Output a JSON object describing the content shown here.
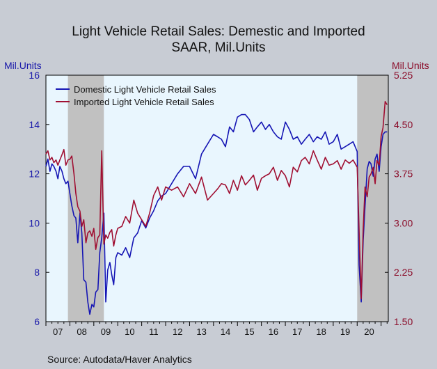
{
  "chart_data": {
    "type": "line",
    "title": "Light Vehicle Retail Sales: Demestic and Imported",
    "subtitle": "SAAR, Mil.Units",
    "y_left_label": "Mil.Units",
    "y_right_label": "Mil.Units",
    "source": "Source:  Autodata/Haver Analytics",
    "x_tick_labels": [
      "07",
      "08",
      "09",
      "10",
      "11",
      "12",
      "13",
      "14",
      "15",
      "16",
      "17",
      "18",
      "19",
      "20"
    ],
    "x_range": [
      2007.0,
      2021.3
    ],
    "y_left_ticks": [
      "6",
      "8",
      "10",
      "12",
      "14",
      "16"
    ],
    "y_left_range": [
      6,
      16
    ],
    "y_right_ticks": [
      "1.50",
      "2.25",
      "3.00",
      "3.75",
      "4.50",
      "5.25"
    ],
    "y_right_range": [
      1.5,
      5.25
    ],
    "recessions": [
      [
        2007.92,
        2009.42
      ],
      [
        2020.0,
        2021.3
      ]
    ],
    "legend_position": "top-left",
    "grid": false,
    "colors": {
      "domestic": "#1515b4",
      "imported": "#a00f32",
      "plot_bg": "#e9f6fe",
      "recession": "#c1c1c1"
    },
    "series": [
      {
        "name": "Domestic Light Vehicle Retail Sales",
        "axis": "left",
        "x": [
          2007.0,
          2007.08,
          2007.17,
          2007.25,
          2007.33,
          2007.42,
          2007.5,
          2007.58,
          2007.67,
          2007.75,
          2007.83,
          2007.92,
          2008.0,
          2008.08,
          2008.17,
          2008.25,
          2008.33,
          2008.42,
          2008.5,
          2008.58,
          2008.67,
          2008.75,
          2008.83,
          2008.92,
          2009.0,
          2009.08,
          2009.17,
          2009.25,
          2009.33,
          2009.42,
          2009.5,
          2009.58,
          2009.67,
          2009.75,
          2009.83,
          2009.92,
          2010.0,
          2010.17,
          2010.33,
          2010.5,
          2010.67,
          2010.83,
          2011.0,
          2011.17,
          2011.33,
          2011.5,
          2011.67,
          2011.83,
          2012.0,
          2012.25,
          2012.5,
          2012.75,
          2013.0,
          2013.25,
          2013.5,
          2013.75,
          2014.0,
          2014.17,
          2014.33,
          2014.5,
          2014.67,
          2014.83,
          2015.0,
          2015.17,
          2015.33,
          2015.5,
          2015.67,
          2015.83,
          2016.0,
          2016.17,
          2016.33,
          2016.5,
          2016.67,
          2016.83,
          2017.0,
          2017.17,
          2017.33,
          2017.5,
          2017.67,
          2017.83,
          2018.0,
          2018.17,
          2018.33,
          2018.5,
          2018.67,
          2018.83,
          2019.0,
          2019.17,
          2019.33,
          2019.5,
          2019.67,
          2019.83,
          2020.0,
          2020.08,
          2020.17,
          2020.25,
          2020.33,
          2020.42,
          2020.5,
          2020.58,
          2020.67,
          2020.75,
          2020.83,
          2020.92,
          2021.0,
          2021.08,
          2021.17,
          2021.25
        ],
        "values": [
          12.3,
          12.6,
          12.1,
          12.4,
          12.3,
          12.1,
          11.8,
          12.3,
          12.1,
          11.8,
          11.6,
          11.7,
          11.2,
          10.7,
          10.3,
          10.2,
          9.2,
          10.4,
          9.6,
          7.7,
          7.6,
          6.8,
          6.3,
          6.7,
          6.6,
          7.2,
          7.3,
          8.8,
          9.4,
          10.4,
          6.8,
          8.1,
          8.4,
          7.9,
          7.5,
          8.6,
          8.8,
          8.7,
          9.0,
          8.6,
          9.4,
          9.6,
          10.1,
          9.8,
          10.2,
          10.5,
          10.9,
          11.1,
          11.2,
          11.6,
          12.0,
          12.3,
          12.3,
          11.8,
          12.8,
          13.2,
          13.6,
          13.5,
          13.4,
          13.1,
          13.9,
          13.7,
          14.3,
          14.4,
          14.4,
          14.2,
          13.7,
          13.9,
          14.1,
          13.8,
          14.0,
          13.7,
          13.5,
          13.4,
          14.1,
          13.8,
          13.4,
          13.5,
          13.2,
          13.4,
          13.6,
          13.3,
          13.5,
          13.4,
          13.7,
          13.2,
          13.3,
          13.6,
          13.0,
          13.1,
          13.2,
          13.3,
          12.9,
          8.3,
          6.8,
          9.3,
          10.7,
          12.2,
          12.5,
          12.4,
          11.9,
          12.6,
          12.8,
          12.1,
          13.1,
          13.6,
          13.7,
          13.7
        ]
      },
      {
        "name": "Imported Light Vehicle Retail Sales",
        "axis": "right",
        "x": [
          2007.0,
          2007.08,
          2007.17,
          2007.25,
          2007.33,
          2007.42,
          2007.5,
          2007.58,
          2007.67,
          2007.75,
          2007.83,
          2007.92,
          2008.0,
          2008.08,
          2008.17,
          2008.25,
          2008.33,
          2008.42,
          2008.5,
          2008.58,
          2008.67,
          2008.75,
          2008.83,
          2008.92,
          2009.0,
          2009.08,
          2009.17,
          2009.25,
          2009.33,
          2009.42,
          2009.5,
          2009.58,
          2009.67,
          2009.75,
          2009.83,
          2009.92,
          2010.0,
          2010.17,
          2010.33,
          2010.5,
          2010.67,
          2010.83,
          2011.0,
          2011.17,
          2011.33,
          2011.5,
          2011.67,
          2011.83,
          2012.0,
          2012.25,
          2012.5,
          2012.75,
          2013.0,
          2013.25,
          2013.5,
          2013.75,
          2014.0,
          2014.17,
          2014.33,
          2014.5,
          2014.67,
          2014.83,
          2015.0,
          2015.17,
          2015.33,
          2015.5,
          2015.67,
          2015.83,
          2016.0,
          2016.17,
          2016.33,
          2016.5,
          2016.67,
          2016.83,
          2017.0,
          2017.17,
          2017.33,
          2017.5,
          2017.67,
          2017.83,
          2018.0,
          2018.17,
          2018.33,
          2018.5,
          2018.67,
          2018.83,
          2019.0,
          2019.17,
          2019.33,
          2019.5,
          2019.67,
          2019.83,
          2020.0,
          2020.08,
          2020.17,
          2020.25,
          2020.33,
          2020.42,
          2020.5,
          2020.58,
          2020.67,
          2020.75,
          2020.83,
          2020.92,
          2021.0,
          2021.08,
          2021.17,
          2021.25
        ],
        "values": [
          4.05,
          4.1,
          3.96,
          4.0,
          3.92,
          3.96,
          3.88,
          3.96,
          4.04,
          4.12,
          3.88,
          3.96,
          3.97,
          4.02,
          3.75,
          3.45,
          3.25,
          3.18,
          2.95,
          3.05,
          2.7,
          2.85,
          2.88,
          2.8,
          2.92,
          2.6,
          2.78,
          2.82,
          4.1,
          2.68,
          2.82,
          2.77,
          2.86,
          2.9,
          2.65,
          2.82,
          2.92,
          2.95,
          3.1,
          3.0,
          3.35,
          3.15,
          3.05,
          2.95,
          3.15,
          3.42,
          3.55,
          3.35,
          3.55,
          3.5,
          3.55,
          3.4,
          3.6,
          3.45,
          3.7,
          3.35,
          3.45,
          3.52,
          3.6,
          3.58,
          3.45,
          3.65,
          3.5,
          3.72,
          3.58,
          3.65,
          3.73,
          3.5,
          3.68,
          3.72,
          3.75,
          3.85,
          3.65,
          3.8,
          3.72,
          3.55,
          3.85,
          3.78,
          3.95,
          4.0,
          3.9,
          4.1,
          3.96,
          3.82,
          4.0,
          3.88,
          3.9,
          3.95,
          3.82,
          3.96,
          3.91,
          3.96,
          3.85,
          2.9,
          1.85,
          2.9,
          3.55,
          3.4,
          3.7,
          3.75,
          3.85,
          3.6,
          3.95,
          3.88,
          4.32,
          4.45,
          4.85,
          4.8
        ]
      }
    ]
  }
}
